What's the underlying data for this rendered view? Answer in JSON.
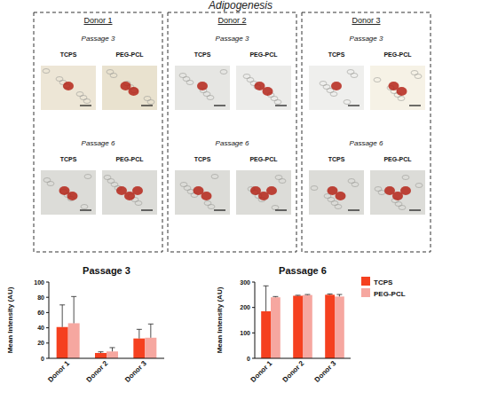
{
  "figure": {
    "title": "Adipogenesis",
    "panels": [
      {
        "donor": "Donor 1",
        "passages": [
          {
            "label": "Passage 3",
            "columns": [
              "TCPS",
              "PEG-PCL"
            ]
          },
          {
            "label": "Passage 6",
            "columns": [
              "TCPS",
              "PEG-PCL"
            ]
          }
        ]
      },
      {
        "donor": "Donor 2",
        "passages": [
          {
            "label": "Passage 3",
            "columns": [
              "TCPS",
              "PEG-PCL"
            ]
          },
          {
            "label": "Passage 6",
            "columns": [
              "TCPS",
              "PEG-PCL"
            ]
          }
        ]
      },
      {
        "donor": "Donor 3",
        "passages": [
          {
            "label": "Passage 3",
            "columns": [
              "TCPS",
              "PEG-PCL"
            ]
          },
          {
            "label": "Passage 6",
            "columns": [
              "TCPS",
              "PEG-PCL"
            ]
          }
        ]
      }
    ]
  },
  "chart_data": [
    {
      "type": "bar",
      "title": "Passage 3",
      "y_label": "Mean Intensity (AU)",
      "categories": [
        "Donor 1",
        "Donor 2",
        "Donor 3"
      ],
      "ylim": [
        0,
        100
      ],
      "yticks": [
        0,
        20,
        40,
        60,
        80,
        100
      ],
      "series": [
        {
          "color": "#f5401f",
          "values": [
            41,
            7,
            26
          ],
          "errors": [
            29,
            1.5,
            12
          ]
        },
        {
          "color": "#f6a7a0",
          "values": [
            46,
            9,
            27
          ],
          "errors": [
            35,
            5,
            18
          ]
        }
      ]
    },
    {
      "type": "bar",
      "title": "Passage 6",
      "y_label": "Mean Intensity (AU)",
      "categories": [
        "Donor 1",
        "Donor 2",
        "Donor 3"
      ],
      "ylim": [
        0,
        300
      ],
      "yticks": [
        0,
        100,
        200,
        300
      ],
      "legend": "right",
      "series": [
        {
          "name": "TCPS",
          "color": "#f5401f",
          "values": [
            185,
            246,
            250
          ],
          "errors": [
            100,
            2,
            3
          ]
        },
        {
          "name": "PEG-PCL",
          "color": "#f6a7a0",
          "values": [
            240,
            249,
            243
          ],
          "errors": [
            3,
            2,
            8
          ]
        }
      ]
    }
  ]
}
